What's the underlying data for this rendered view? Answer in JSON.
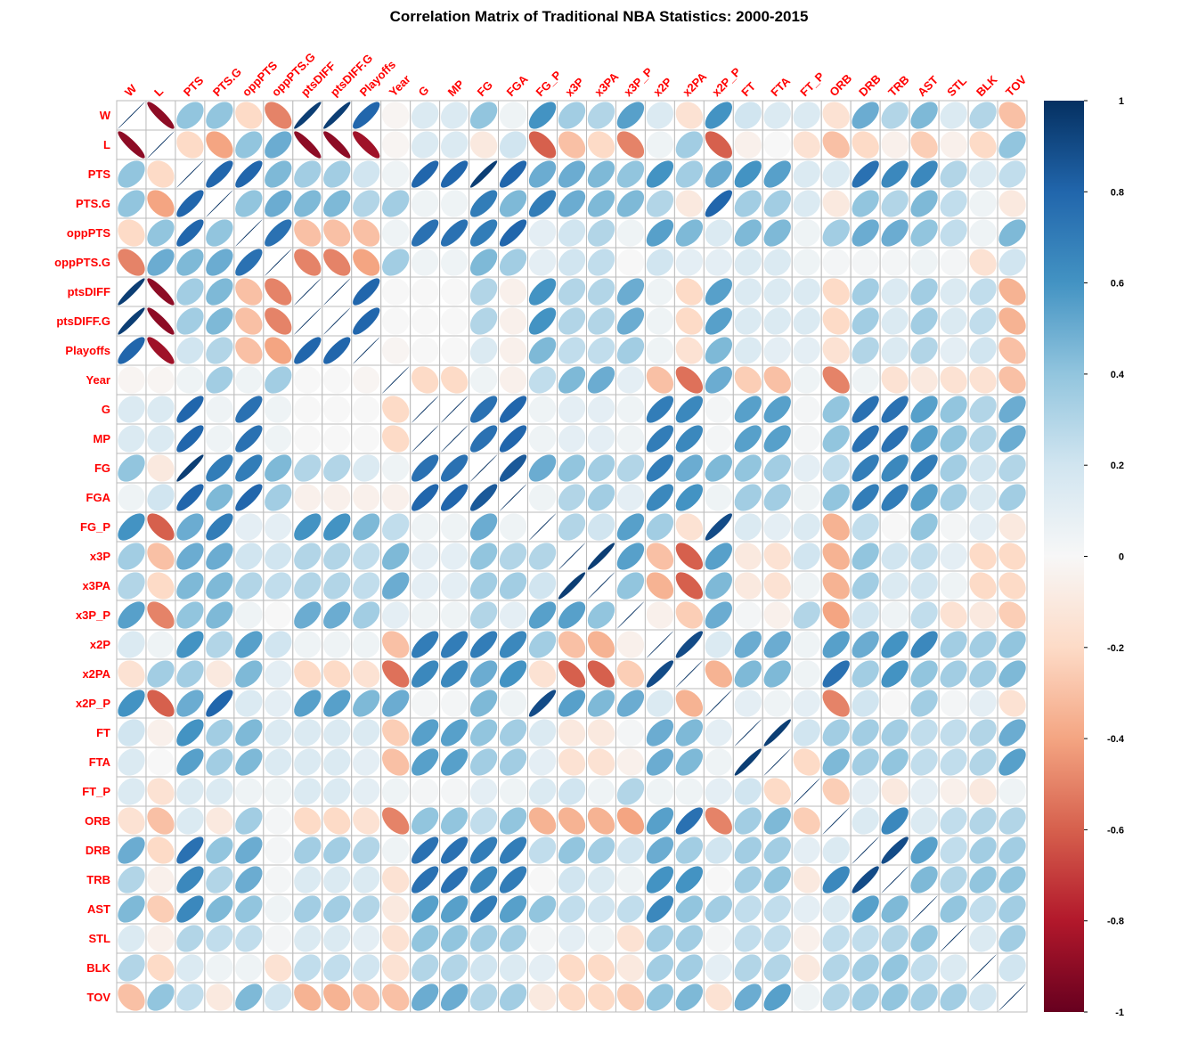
{
  "chart_data": {
    "type": "heatmap",
    "title": "Correlation Matrix of Traditional NBA Statistics: 2000-2015",
    "variables": [
      "W",
      "L",
      "PTS",
      "PTS.G",
      "oppPTS",
      "oppPTS.G",
      "ptsDIFF",
      "ptsDIFF.G",
      "Playoffs",
      "Year",
      "G",
      "MP",
      "FG",
      "FGA",
      "FG_P",
      "x3P",
      "x3PA",
      "x3P_P",
      "x2P",
      "x2PA",
      "x2P_P",
      "FT",
      "FTA",
      "FT_P",
      "ORB",
      "DRB",
      "TRB",
      "AST",
      "STL",
      "BLK",
      "TOV"
    ],
    "matrix": [
      [
        1,
        -0.9,
        0.4,
        0.4,
        -0.2,
        -0.5,
        0.95,
        0.95,
        0.8,
        -0.02,
        0.15,
        0.15,
        0.4,
        0.05,
        0.6,
        0.35,
        0.3,
        0.55,
        0.15,
        -0.15,
        0.6,
        0.2,
        0.15,
        0.15,
        -0.15,
        0.5,
        0.3,
        0.45,
        0.15,
        0.3,
        -0.3
      ],
      [
        -0.9,
        1,
        -0.2,
        -0.4,
        0.4,
        0.5,
        -0.9,
        -0.9,
        -0.85,
        -0.02,
        0.15,
        0.15,
        -0.1,
        0.2,
        -0.6,
        -0.3,
        -0.2,
        -0.5,
        0.05,
        0.35,
        -0.6,
        -0.05,
        0,
        -0.15,
        -0.3,
        -0.2,
        -0.05,
        -0.25,
        -0.05,
        -0.2,
        0.4
      ],
      [
        0.4,
        -0.2,
        1,
        0.8,
        0.8,
        0.45,
        0.35,
        0.35,
        0.2,
        0.05,
        0.8,
        0.8,
        0.95,
        0.8,
        0.5,
        0.5,
        0.45,
        0.4,
        0.6,
        0.35,
        0.5,
        0.6,
        0.55,
        0.15,
        0.15,
        0.75,
        0.65,
        0.65,
        0.3,
        0.15,
        0.25
      ],
      [
        0.4,
        -0.4,
        0.8,
        1,
        0.4,
        0.5,
        0.45,
        0.45,
        0.3,
        0.35,
        0.05,
        0.05,
        0.7,
        0.45,
        0.7,
        0.5,
        0.45,
        0.45,
        0.3,
        -0.1,
        0.8,
        0.35,
        0.35,
        0.15,
        -0.1,
        0.4,
        0.3,
        0.45,
        0.25,
        0.05,
        -0.1
      ],
      [
        -0.2,
        0.4,
        0.8,
        0.4,
        1,
        0.75,
        -0.3,
        -0.3,
        -0.3,
        0.05,
        0.75,
        0.75,
        0.7,
        0.8,
        0.1,
        0.2,
        0.3,
        0.05,
        0.55,
        0.45,
        0.15,
        0.45,
        0.45,
        0.05,
        0.35,
        0.5,
        0.5,
        0.4,
        0.25,
        0.05,
        0.45
      ],
      [
        -0.5,
        0.5,
        0.45,
        0.5,
        0.75,
        1,
        -0.5,
        -0.5,
        -0.4,
        0.35,
        0.05,
        0.05,
        0.45,
        0.35,
        0.1,
        0.2,
        0.25,
        0,
        0.2,
        0.1,
        0.1,
        0.15,
        0.15,
        0.05,
        0.02,
        0.02,
        0.02,
        0.05,
        0.02,
        -0.15,
        0.2
      ],
      [
        0.95,
        -0.9,
        0.35,
        0.45,
        -0.3,
        -0.5,
        1,
        1,
        0.8,
        0,
        0,
        0,
        0.3,
        -0.05,
        0.6,
        0.3,
        0.3,
        0.5,
        0.05,
        -0.2,
        0.55,
        0.15,
        0.15,
        0.15,
        -0.2,
        0.35,
        0.15,
        0.35,
        0.15,
        0.25,
        -0.35
      ],
      [
        0.95,
        -0.9,
        0.35,
        0.45,
        -0.3,
        -0.5,
        1,
        1,
        0.8,
        0,
        0,
        0,
        0.3,
        -0.05,
        0.6,
        0.3,
        0.3,
        0.5,
        0.05,
        -0.2,
        0.55,
        0.15,
        0.15,
        0.15,
        -0.2,
        0.35,
        0.15,
        0.35,
        0.15,
        0.25,
        -0.35
      ],
      [
        0.8,
        -0.85,
        0.2,
        0.3,
        -0.3,
        -0.4,
        0.8,
        0.8,
        1,
        -0.02,
        0,
        0,
        0.15,
        -0.05,
        0.45,
        0.25,
        0.25,
        0.35,
        0.05,
        -0.15,
        0.45,
        0.15,
        0.1,
        0.1,
        -0.15,
        0.3,
        0.15,
        0.3,
        0.1,
        0.2,
        -0.3
      ],
      [
        -0.02,
        -0.02,
        0.05,
        0.35,
        0.05,
        0.35,
        0,
        0,
        -0.02,
        1,
        -0.2,
        -0.2,
        0.05,
        -0.05,
        0.25,
        0.45,
        0.5,
        0.1,
        -0.3,
        -0.55,
        0.5,
        -0.25,
        -0.3,
        0.05,
        -0.5,
        0.05,
        -0.15,
        -0.1,
        -0.15,
        -0.15,
        -0.3
      ],
      [
        0.15,
        0.15,
        0.8,
        0.05,
        0.75,
        0.05,
        0,
        0,
        0,
        -0.2,
        1,
        1,
        0.75,
        0.8,
        0.05,
        0.1,
        0.1,
        0.05,
        0.7,
        0.65,
        0.02,
        0.55,
        0.55,
        0.02,
        0.4,
        0.75,
        0.75,
        0.55,
        0.4,
        0.3,
        0.5
      ],
      [
        0.15,
        0.15,
        0.8,
        0.05,
        0.75,
        0.05,
        0,
        0,
        0,
        -0.2,
        1,
        1,
        0.75,
        0.8,
        0.05,
        0.1,
        0.1,
        0.05,
        0.7,
        0.65,
        0.02,
        0.55,
        0.55,
        0.02,
        0.4,
        0.75,
        0.75,
        0.55,
        0.4,
        0.3,
        0.5
      ],
      [
        0.4,
        -0.1,
        0.95,
        0.7,
        0.7,
        0.45,
        0.3,
        0.3,
        0.15,
        0.05,
        0.75,
        0.75,
        1,
        0.85,
        0.5,
        0.4,
        0.35,
        0.3,
        0.7,
        0.5,
        0.45,
        0.4,
        0.35,
        0.1,
        0.25,
        0.7,
        0.65,
        0.7,
        0.35,
        0.2,
        0.3
      ],
      [
        0.05,
        0.2,
        0.8,
        0.45,
        0.8,
        0.35,
        -0.05,
        -0.05,
        -0.05,
        -0.05,
        0.8,
        0.8,
        0.85,
        1,
        0.05,
        0.3,
        0.35,
        0.1,
        0.65,
        0.6,
        0.05,
        0.35,
        0.35,
        0.05,
        0.4,
        0.7,
        0.7,
        0.55,
        0.35,
        0.15,
        0.35
      ],
      [
        0.6,
        -0.6,
        0.5,
        0.7,
        0.1,
        0.1,
        0.6,
        0.6,
        0.45,
        0.25,
        0.05,
        0.05,
        0.5,
        0.05,
        1,
        0.3,
        0.2,
        0.55,
        0.35,
        -0.15,
        0.9,
        0.15,
        0.1,
        0.15,
        -0.35,
        0.25,
        0,
        0.4,
        0.02,
        0.1,
        -0.1
      ],
      [
        0.35,
        -0.3,
        0.5,
        0.5,
        0.2,
        0.2,
        0.3,
        0.3,
        0.25,
        0.45,
        0.1,
        0.1,
        0.4,
        0.3,
        0.3,
        1,
        0.95,
        0.55,
        -0.3,
        -0.6,
        0.55,
        -0.1,
        -0.15,
        0.2,
        -0.35,
        0.4,
        0.2,
        0.25,
        0.1,
        -0.2,
        -0.2
      ],
      [
        0.3,
        -0.2,
        0.45,
        0.45,
        0.3,
        0.25,
        0.3,
        0.3,
        0.25,
        0.5,
        0.1,
        0.1,
        0.35,
        0.35,
        0.2,
        0.95,
        1,
        0.4,
        -0.35,
        -0.6,
        0.45,
        -0.1,
        -0.15,
        0.05,
        -0.35,
        0.35,
        0.15,
        0.2,
        0.05,
        -0.2,
        -0.2
      ],
      [
        0.55,
        -0.5,
        0.4,
        0.45,
        0.05,
        0,
        0.5,
        0.5,
        0.35,
        0.1,
        0.05,
        0.05,
        0.3,
        0.1,
        0.55,
        0.55,
        0.4,
        1,
        -0.05,
        -0.25,
        0.5,
        0.02,
        -0.05,
        0.3,
        -0.4,
        0.2,
        0.05,
        0.25,
        -0.15,
        -0.1,
        -0.25
      ],
      [
        0.15,
        0.05,
        0.6,
        0.3,
        0.55,
        0.2,
        0.05,
        0.05,
        0.05,
        -0.3,
        0.7,
        0.7,
        0.7,
        0.65,
        0.35,
        -0.3,
        -0.35,
        -0.05,
        1,
        0.9,
        0.15,
        0.5,
        0.5,
        0.05,
        0.55,
        0.5,
        0.6,
        0.65,
        0.35,
        0.35,
        0.4
      ],
      [
        -0.15,
        0.35,
        0.35,
        -0.1,
        0.45,
        0.1,
        -0.2,
        -0.2,
        -0.15,
        -0.55,
        0.65,
        0.65,
        0.5,
        0.6,
        -0.15,
        -0.6,
        -0.6,
        -0.25,
        0.9,
        1,
        -0.35,
        0.45,
        0.45,
        0.05,
        0.75,
        0.35,
        0.6,
        0.4,
        0.35,
        0.35,
        0.45
      ],
      [
        0.6,
        -0.6,
        0.5,
        0.8,
        0.15,
        0.1,
        0.55,
        0.55,
        0.45,
        0.5,
        0.02,
        0.02,
        0.45,
        0.05,
        0.9,
        0.55,
        0.45,
        0.5,
        0.15,
        -0.35,
        1,
        0.1,
        0.05,
        0.1,
        -0.5,
        0.2,
        0,
        0.35,
        0.02,
        0.1,
        -0.15
      ],
      [
        0.2,
        -0.05,
        0.6,
        0.35,
        0.45,
        0.15,
        0.15,
        0.15,
        0.15,
        -0.25,
        0.55,
        0.55,
        0.4,
        0.35,
        0.15,
        -0.1,
        -0.1,
        0.02,
        0.5,
        0.45,
        0.1,
        1,
        0.95,
        0.2,
        0.35,
        0.35,
        0.35,
        0.25,
        0.25,
        0.3,
        0.5
      ],
      [
        0.15,
        0,
        0.55,
        0.35,
        0.45,
        0.15,
        0.15,
        0.15,
        0.1,
        -0.3,
        0.55,
        0.55,
        0.35,
        0.35,
        0.1,
        -0.15,
        -0.15,
        -0.05,
        0.5,
        0.45,
        0.05,
        0.95,
        1,
        -0.2,
        0.45,
        0.35,
        0.4,
        0.25,
        0.25,
        0.3,
        0.55
      ],
      [
        0.15,
        -0.15,
        0.15,
        0.15,
        0.05,
        0.05,
        0.15,
        0.15,
        0.1,
        0.05,
        0.02,
        0.02,
        0.1,
        0.05,
        0.15,
        0.2,
        0.05,
        0.3,
        0.05,
        0.05,
        0.1,
        0.2,
        -0.2,
        1,
        -0.25,
        0.1,
        -0.1,
        0.1,
        -0.05,
        -0.1,
        0.05
      ],
      [
        -0.15,
        -0.3,
        0.15,
        -0.1,
        0.35,
        0.02,
        -0.2,
        -0.2,
        -0.15,
        -0.5,
        0.4,
        0.4,
        0.25,
        0.4,
        -0.35,
        -0.35,
        -0.35,
        -0.4,
        0.55,
        0.75,
        -0.5,
        0.35,
        0.45,
        -0.25,
        1,
        0.15,
        0.65,
        0.15,
        0.25,
        0.3,
        0.3
      ],
      [
        0.5,
        -0.2,
        0.75,
        0.4,
        0.5,
        0.02,
        0.35,
        0.35,
        0.3,
        0.05,
        0.75,
        0.75,
        0.7,
        0.7,
        0.25,
        0.4,
        0.35,
        0.2,
        0.5,
        0.35,
        0.2,
        0.35,
        0.35,
        0.1,
        0.15,
        1,
        0.9,
        0.55,
        0.25,
        0.35,
        0.35
      ],
      [
        0.3,
        -0.05,
        0.65,
        0.3,
        0.5,
        0.02,
        0.15,
        0.15,
        0.15,
        -0.15,
        0.75,
        0.75,
        0.65,
        0.7,
        0,
        0.2,
        0.15,
        0.05,
        0.6,
        0.6,
        0,
        0.35,
        0.4,
        -0.1,
        0.65,
        0.9,
        1,
        0.45,
        0.3,
        0.4,
        0.4
      ],
      [
        0.45,
        -0.25,
        0.65,
        0.45,
        0.4,
        0.05,
        0.35,
        0.35,
        0.3,
        -0.1,
        0.55,
        0.55,
        0.7,
        0.55,
        0.4,
        0.25,
        0.2,
        0.25,
        0.65,
        0.4,
        0.35,
        0.25,
        0.25,
        0.1,
        0.15,
        0.55,
        0.45,
        1,
        0.4,
        0.25,
        0.35
      ],
      [
        0.15,
        -0.05,
        0.3,
        0.25,
        0.25,
        0.02,
        0.15,
        0.15,
        0.1,
        -0.15,
        0.4,
        0.4,
        0.35,
        0.35,
        0.02,
        0.1,
        0.05,
        -0.15,
        0.35,
        0.35,
        0.02,
        0.25,
        0.25,
        -0.05,
        0.25,
        0.25,
        0.3,
        0.4,
        1,
        0.15,
        0.35
      ],
      [
        0.3,
        -0.2,
        0.15,
        0.05,
        0.05,
        -0.15,
        0.25,
        0.25,
        0.2,
        -0.15,
        0.3,
        0.3,
        0.2,
        0.15,
        0.1,
        -0.2,
        -0.2,
        -0.1,
        0.35,
        0.35,
        0.1,
        0.3,
        0.3,
        -0.1,
        0.3,
        0.35,
        0.4,
        0.25,
        0.15,
        1,
        0.2
      ],
      [
        -0.3,
        0.4,
        0.25,
        -0.1,
        0.45,
        0.2,
        -0.35,
        -0.35,
        -0.3,
        -0.3,
        0.5,
        0.5,
        0.3,
        0.35,
        -0.1,
        -0.2,
        -0.2,
        -0.25,
        0.4,
        0.45,
        -0.15,
        0.5,
        0.55,
        0.05,
        0.3,
        0.35,
        0.4,
        0.35,
        0.35,
        0.2,
        1
      ]
    ],
    "colorbar": {
      "range": [
        -1,
        1
      ],
      "ticks": [
        "1",
        "0.8",
        "0.6",
        "0.4",
        "0.2",
        "0",
        "-0.2",
        "-0.4",
        "-0.6",
        "-0.8",
        "-1"
      ]
    },
    "colors": {
      "label": "#ff0000",
      "grid": "#bbbbbb",
      "strong_pos": "#053061",
      "neutral": "#f7f7f7",
      "strong_neg": "#67001f"
    }
  }
}
